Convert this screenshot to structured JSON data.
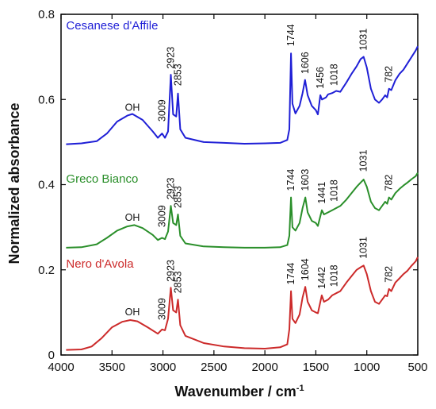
{
  "chart_data": {
    "type": "line",
    "xlabel": "Wavenumber / cm",
    "xlabel_sup": "-1",
    "ylabel": "Normalized absorbance",
    "xlim": [
      4000,
      500
    ],
    "ylim": [
      0,
      0.8
    ],
    "x_ticks": [
      4000,
      3500,
      3000,
      2500,
      2000,
      1500,
      1000,
      500
    ],
    "y_ticks": [
      0,
      0.2,
      0.4,
      0.6,
      0.8
    ],
    "y_tick_labels": [
      "0",
      "0.2",
      "0.4",
      "0.6",
      "0.8"
    ],
    "grid": false,
    "series": [
      {
        "name": "Cesanese d'Affile",
        "color": "#1f1fd6",
        "points": [
          [
            3950,
            0.495
          ],
          [
            3800,
            0.497
          ],
          [
            3650,
            0.502
          ],
          [
            3550,
            0.52
          ],
          [
            3450,
            0.548
          ],
          [
            3350,
            0.562
          ],
          [
            3300,
            0.566
          ],
          [
            3200,
            0.552
          ],
          [
            3100,
            0.525
          ],
          [
            3050,
            0.51
          ],
          [
            3009,
            0.52
          ],
          [
            2980,
            0.51
          ],
          [
            2950,
            0.525
          ],
          [
            2923,
            0.658
          ],
          [
            2900,
            0.565
          ],
          [
            2870,
            0.56
          ],
          [
            2853,
            0.614
          ],
          [
            2830,
            0.53
          ],
          [
            2780,
            0.51
          ],
          [
            2600,
            0.5
          ],
          [
            2400,
            0.498
          ],
          [
            2200,
            0.496
          ],
          [
            2000,
            0.497
          ],
          [
            1850,
            0.498
          ],
          [
            1780,
            0.505
          ],
          [
            1760,
            0.53
          ],
          [
            1744,
            0.708
          ],
          [
            1730,
            0.59
          ],
          [
            1700,
            0.567
          ],
          [
            1660,
            0.585
          ],
          [
            1630,
            0.615
          ],
          [
            1606,
            0.646
          ],
          [
            1580,
            0.61
          ],
          [
            1540,
            0.585
          ],
          [
            1500,
            0.575
          ],
          [
            1480,
            0.565
          ],
          [
            1456,
            0.61
          ],
          [
            1440,
            0.6
          ],
          [
            1400,
            0.605
          ],
          [
            1380,
            0.612
          ],
          [
            1340,
            0.615
          ],
          [
            1300,
            0.62
          ],
          [
            1260,
            0.618
          ],
          [
            1200,
            0.64
          ],
          [
            1150,
            0.66
          ],
          [
            1100,
            0.678
          ],
          [
            1060,
            0.695
          ],
          [
            1031,
            0.7
          ],
          [
            1000,
            0.675
          ],
          [
            960,
            0.625
          ],
          [
            920,
            0.6
          ],
          [
            880,
            0.592
          ],
          [
            850,
            0.6
          ],
          [
            820,
            0.61
          ],
          [
            800,
            0.605
          ],
          [
            782,
            0.625
          ],
          [
            760,
            0.622
          ],
          [
            720,
            0.645
          ],
          [
            680,
            0.66
          ],
          [
            640,
            0.67
          ],
          [
            600,
            0.685
          ],
          [
            560,
            0.7
          ],
          [
            520,
            0.715
          ],
          [
            500,
            0.725
          ]
        ]
      },
      {
        "name": "Greco Bianco",
        "color": "#2a8f2a",
        "points": [
          [
            3950,
            0.252
          ],
          [
            3800,
            0.253
          ],
          [
            3650,
            0.26
          ],
          [
            3550,
            0.275
          ],
          [
            3450,
            0.292
          ],
          [
            3350,
            0.302
          ],
          [
            3280,
            0.305
          ],
          [
            3200,
            0.298
          ],
          [
            3100,
            0.282
          ],
          [
            3050,
            0.27
          ],
          [
            3009,
            0.275
          ],
          [
            2980,
            0.272
          ],
          [
            2950,
            0.29
          ],
          [
            2923,
            0.35
          ],
          [
            2900,
            0.31
          ],
          [
            2870,
            0.305
          ],
          [
            2853,
            0.33
          ],
          [
            2830,
            0.28
          ],
          [
            2780,
            0.262
          ],
          [
            2600,
            0.255
          ],
          [
            2400,
            0.253
          ],
          [
            2200,
            0.252
          ],
          [
            2000,
            0.252
          ],
          [
            1850,
            0.253
          ],
          [
            1780,
            0.258
          ],
          [
            1760,
            0.28
          ],
          [
            1744,
            0.37
          ],
          [
            1730,
            0.3
          ],
          [
            1700,
            0.292
          ],
          [
            1660,
            0.31
          ],
          [
            1630,
            0.345
          ],
          [
            1603,
            0.37
          ],
          [
            1580,
            0.335
          ],
          [
            1540,
            0.315
          ],
          [
            1500,
            0.31
          ],
          [
            1480,
            0.303
          ],
          [
            1441,
            0.34
          ],
          [
            1420,
            0.33
          ],
          [
            1380,
            0.335
          ],
          [
            1340,
            0.34
          ],
          [
            1300,
            0.345
          ],
          [
            1260,
            0.35
          ],
          [
            1200,
            0.365
          ],
          [
            1150,
            0.38
          ],
          [
            1100,
            0.395
          ],
          [
            1060,
            0.405
          ],
          [
            1031,
            0.412
          ],
          [
            1000,
            0.395
          ],
          [
            960,
            0.36
          ],
          [
            920,
            0.345
          ],
          [
            880,
            0.34
          ],
          [
            850,
            0.35
          ],
          [
            820,
            0.36
          ],
          [
            800,
            0.355
          ],
          [
            782,
            0.37
          ],
          [
            760,
            0.365
          ],
          [
            720,
            0.38
          ],
          [
            680,
            0.39
          ],
          [
            640,
            0.398
          ],
          [
            600,
            0.405
          ],
          [
            560,
            0.413
          ],
          [
            520,
            0.42
          ],
          [
            500,
            0.428
          ]
        ]
      },
      {
        "name": "Nero d'Avola",
        "color": "#cc2a2a",
        "points": [
          [
            3950,
            0.012
          ],
          [
            3800,
            0.013
          ],
          [
            3700,
            0.02
          ],
          [
            3600,
            0.04
          ],
          [
            3500,
            0.065
          ],
          [
            3400,
            0.078
          ],
          [
            3320,
            0.082
          ],
          [
            3250,
            0.079
          ],
          [
            3150,
            0.065
          ],
          [
            3050,
            0.05
          ],
          [
            3009,
            0.06
          ],
          [
            2980,
            0.058
          ],
          [
            2950,
            0.085
          ],
          [
            2923,
            0.158
          ],
          [
            2900,
            0.105
          ],
          [
            2870,
            0.1
          ],
          [
            2853,
            0.13
          ],
          [
            2830,
            0.07
          ],
          [
            2780,
            0.045
          ],
          [
            2600,
            0.028
          ],
          [
            2400,
            0.02
          ],
          [
            2200,
            0.016
          ],
          [
            2000,
            0.015
          ],
          [
            1850,
            0.018
          ],
          [
            1780,
            0.025
          ],
          [
            1760,
            0.06
          ],
          [
            1744,
            0.15
          ],
          [
            1730,
            0.085
          ],
          [
            1700,
            0.075
          ],
          [
            1660,
            0.095
          ],
          [
            1630,
            0.135
          ],
          [
            1604,
            0.16
          ],
          [
            1580,
            0.125
          ],
          [
            1540,
            0.105
          ],
          [
            1500,
            0.1
          ],
          [
            1480,
            0.098
          ],
          [
            1442,
            0.14
          ],
          [
            1420,
            0.125
          ],
          [
            1380,
            0.13
          ],
          [
            1340,
            0.14
          ],
          [
            1300,
            0.145
          ],
          [
            1260,
            0.15
          ],
          [
            1200,
            0.17
          ],
          [
            1150,
            0.185
          ],
          [
            1100,
            0.2
          ],
          [
            1060,
            0.206
          ],
          [
            1031,
            0.21
          ],
          [
            1000,
            0.19
          ],
          [
            960,
            0.15
          ],
          [
            920,
            0.125
          ],
          [
            880,
            0.12
          ],
          [
            850,
            0.13
          ],
          [
            820,
            0.14
          ],
          [
            800,
            0.138
          ],
          [
            782,
            0.155
          ],
          [
            760,
            0.15
          ],
          [
            720,
            0.17
          ],
          [
            680,
            0.18
          ],
          [
            640,
            0.19
          ],
          [
            600,
            0.198
          ],
          [
            560,
            0.21
          ],
          [
            520,
            0.22
          ],
          [
            500,
            0.23
          ]
        ]
      }
    ],
    "series_labels": [
      {
        "text": "Cesanese d'Affile",
        "x": 3950,
        "y": 0.765
      },
      {
        "text": "Greco Bianco",
        "x": 3950,
        "y": 0.405
      },
      {
        "text": "Nero d'Avola",
        "x": 3950,
        "y": 0.205
      }
    ],
    "annotations": [
      {
        "text": "OH",
        "x": 3300,
        "y": 0.573,
        "rotate": false
      },
      {
        "text": "3009",
        "x": 3009,
        "y": 0.548,
        "rotate": true
      },
      {
        "text": "2923",
        "x": 2923,
        "y": 0.672,
        "rotate": true
      },
      {
        "text": "2853",
        "x": 2853,
        "y": 0.632,
        "rotate": true
      },
      {
        "text": "1744",
        "x": 1744,
        "y": 0.725,
        "rotate": true
      },
      {
        "text": "1606",
        "x": 1606,
        "y": 0.66,
        "rotate": true
      },
      {
        "text": "1456",
        "x": 1456,
        "y": 0.625,
        "rotate": true
      },
      {
        "text": "1018",
        "x": 1320,
        "y": 0.632,
        "rotate": true
      },
      {
        "text": "1031",
        "x": 1031,
        "y": 0.715,
        "rotate": true
      },
      {
        "text": "782",
        "x": 782,
        "y": 0.64,
        "rotate": true
      },
      {
        "text": "OH",
        "x": 3300,
        "y": 0.315,
        "rotate": false
      },
      {
        "text": "3009",
        "x": 3009,
        "y": 0.3,
        "rotate": true
      },
      {
        "text": "2923",
        "x": 2923,
        "y": 0.365,
        "rotate": true
      },
      {
        "text": "2853",
        "x": 2853,
        "y": 0.345,
        "rotate": true
      },
      {
        "text": "1744",
        "x": 1744,
        "y": 0.385,
        "rotate": true
      },
      {
        "text": "1603",
        "x": 1603,
        "y": 0.385,
        "rotate": true
      },
      {
        "text": "1441",
        "x": 1441,
        "y": 0.355,
        "rotate": true
      },
      {
        "text": "1018",
        "x": 1320,
        "y": 0.36,
        "rotate": true
      },
      {
        "text": "1031",
        "x": 1031,
        "y": 0.43,
        "rotate": true
      },
      {
        "text": "782",
        "x": 782,
        "y": 0.385,
        "rotate": true
      },
      {
        "text": "OH",
        "x": 3300,
        "y": 0.093,
        "rotate": false
      },
      {
        "text": "3009",
        "x": 3009,
        "y": 0.082,
        "rotate": true
      },
      {
        "text": "2923",
        "x": 2923,
        "y": 0.172,
        "rotate": true
      },
      {
        "text": "2853",
        "x": 2853,
        "y": 0.145,
        "rotate": true
      },
      {
        "text": "1744",
        "x": 1744,
        "y": 0.165,
        "rotate": true
      },
      {
        "text": "1604",
        "x": 1604,
        "y": 0.175,
        "rotate": true
      },
      {
        "text": "1442",
        "x": 1442,
        "y": 0.155,
        "rotate": true
      },
      {
        "text": "1018",
        "x": 1320,
        "y": 0.16,
        "rotate": true
      },
      {
        "text": "1031",
        "x": 1031,
        "y": 0.226,
        "rotate": true
      },
      {
        "text": "782",
        "x": 782,
        "y": 0.17,
        "rotate": true
      }
    ]
  }
}
